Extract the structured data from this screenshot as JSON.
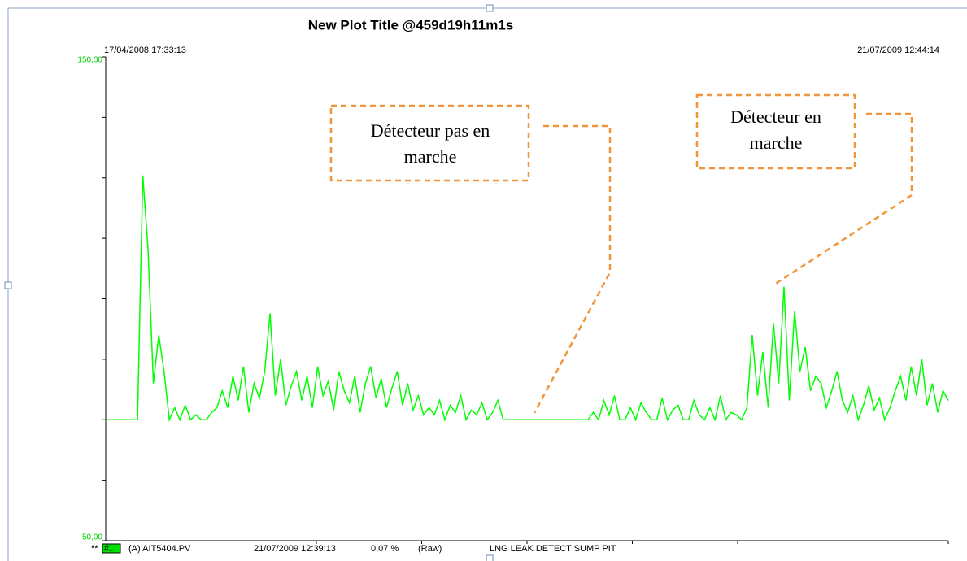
{
  "chart_data": {
    "type": "line",
    "title": "New Plot Title  @459d19h11m1s",
    "x_start_label": "17/04/2008  17:33:13",
    "x_end_label": "21/07/2009  12:44:14",
    "ylim": [
      -50,
      150
    ],
    "yticks": [
      {
        "value": -50,
        "label": "-50,00"
      },
      {
        "value": 150,
        "label": "150,00"
      }
    ],
    "minor_yticks": [
      -25,
      0,
      25,
      50,
      75,
      100,
      125
    ],
    "grid": false,
    "series": [
      {
        "name": "(A) AIT5404.PV",
        "color": "#00ff00",
        "values": [
          0,
          0,
          0,
          0,
          0,
          0,
          0,
          101,
          70,
          15,
          35,
          20,
          0,
          5,
          0,
          6,
          0,
          2,
          0,
          0,
          3,
          5,
          12,
          5,
          18,
          8,
          22,
          3,
          15,
          9,
          20,
          44,
          10,
          25,
          6,
          14,
          20,
          8,
          18,
          5,
          22,
          10,
          16,
          4,
          20,
          12,
          7,
          18,
          3,
          15,
          22,
          9,
          17,
          5,
          13,
          20,
          6,
          15,
          4,
          10,
          2,
          5,
          2,
          8,
          0,
          6,
          3,
          10,
          0,
          4,
          2,
          7,
          0,
          3,
          8,
          0,
          0,
          0,
          0,
          0,
          0,
          0,
          0,
          0,
          0,
          0,
          0,
          0,
          0,
          0,
          0,
          0,
          3,
          0,
          8,
          2,
          10,
          0,
          0,
          5,
          0,
          7,
          3,
          0,
          0,
          9,
          0,
          4,
          6,
          0,
          0,
          8,
          2,
          0,
          5,
          0,
          10,
          0,
          3,
          2,
          0,
          5,
          35,
          10,
          28,
          5,
          40,
          15,
          55,
          8,
          45,
          20,
          30,
          12,
          18,
          15,
          5,
          12,
          20,
          8,
          3,
          10,
          0,
          6,
          14,
          4,
          9,
          0,
          5,
          12,
          18,
          8,
          22,
          10,
          25,
          6,
          15,
          3,
          12,
          8
        ]
      }
    ],
    "annotations": [
      {
        "lines": [
          "Détecteur pas en",
          "marche"
        ]
      },
      {
        "lines": [
          "Détecteur en",
          "marche"
        ]
      }
    ],
    "legend": {
      "prefix": "**",
      "id": "#1",
      "time": "21/07/2009 12:39:13",
      "value": "0,07 %",
      "mode": "(Raw)",
      "description": "LNG LEAK DETECT SUMP PIT"
    }
  }
}
